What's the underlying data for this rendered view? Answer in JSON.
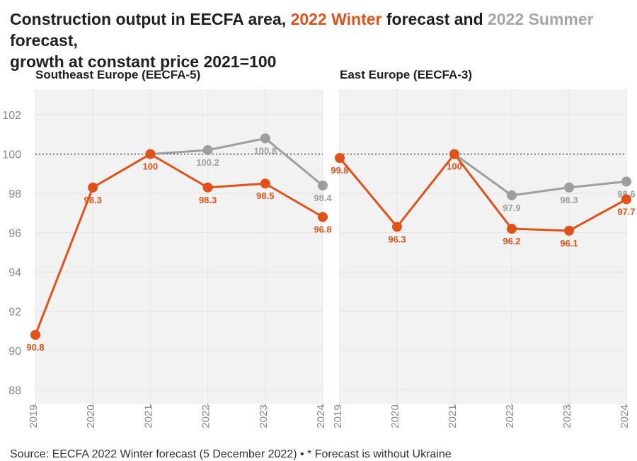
{
  "title": {
    "part1": "Construction output in EECFA area, ",
    "winter": "2022 Winter",
    "part2": " forecast and ",
    "summer": "2022 Summer",
    "part3": " forecast,",
    "line2": "growth at constant price 2021=100"
  },
  "source": "Source: EECFA 2022 Winter forecast (5 December 2022) • * Forecast is without Ukraine",
  "colors": {
    "winter": "#e0521a",
    "summer": "#9e9e9e",
    "panel_bg": "#f2f2f2"
  },
  "chart_data": [
    {
      "type": "line",
      "title": "Southeast Europe (EECFA-5)",
      "x": [
        "2019",
        "2020",
        "2021",
        "2022",
        "2023",
        "2024"
      ],
      "ylim": [
        87.3,
        103.3
      ],
      "yticks": [
        88,
        90,
        92,
        94,
        96,
        98,
        100,
        102
      ],
      "reference_line": 100,
      "series": [
        {
          "key": "winter",
          "values": [
            90.8,
            98.3,
            100,
            98.3,
            98.5,
            96.8
          ],
          "labels": [
            "90.8",
            "98.3",
            "100",
            "98.3",
            "98.5",
            "96.8"
          ]
        },
        {
          "key": "summer",
          "values": [
            null,
            null,
            100,
            100.2,
            100.8,
            98.4
          ],
          "labels": [
            null,
            null,
            null,
            "100.2",
            "100.8",
            "98.4"
          ]
        }
      ]
    },
    {
      "type": "line",
      "title": "East Europe (EECFA-3)",
      "x": [
        "2019",
        "2020",
        "2021",
        "2022",
        "2023",
        "2024"
      ],
      "ylim": [
        87.3,
        103.3
      ],
      "reference_line": 100,
      "series": [
        {
          "key": "winter",
          "values": [
            99.8,
            96.3,
            100,
            96.2,
            96.1,
            97.7
          ],
          "labels": [
            "99.8",
            "96.3",
            "100",
            "96.2",
            "96.1",
            "97.7"
          ]
        },
        {
          "key": "summer",
          "values": [
            null,
            null,
            100,
            97.9,
            98.3,
            98.6
          ],
          "labels": [
            null,
            null,
            null,
            "97.9",
            "98.3",
            "98.6"
          ]
        }
      ]
    }
  ]
}
